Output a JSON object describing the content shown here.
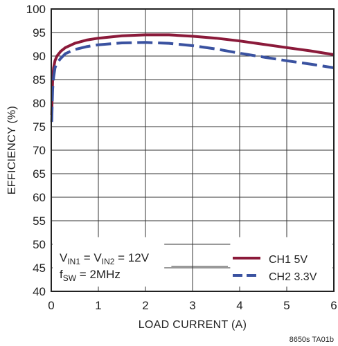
{
  "chart_data": {
    "type": "line",
    "title": "",
    "xlabel": "LOAD CURRENT (A)",
    "ylabel": "EFFICIENCY (%)",
    "xlim": [
      0,
      6
    ],
    "ylim": [
      40,
      100
    ],
    "xticks": [
      0,
      1,
      2,
      3,
      4,
      5,
      6
    ],
    "yticks": [
      40,
      45,
      50,
      55,
      60,
      65,
      70,
      75,
      80,
      85,
      90,
      95,
      100
    ],
    "grid": true,
    "legend_position": "bottom-right",
    "series": [
      {
        "name": "CH1 5V",
        "color": "#8b1a3a",
        "style": "solid",
        "x": [
          0.01,
          0.02,
          0.03,
          0.05,
          0.08,
          0.12,
          0.2,
          0.3,
          0.5,
          0.75,
          1.0,
          1.5,
          2.0,
          2.5,
          3.0,
          3.5,
          4.0,
          4.5,
          5.0,
          5.5,
          6.0
        ],
        "y": [
          77.5,
          82.0,
          85.0,
          87.5,
          89.0,
          90.0,
          91.0,
          91.8,
          92.7,
          93.4,
          93.8,
          94.3,
          94.5,
          94.5,
          94.2,
          93.8,
          93.2,
          92.5,
          91.8,
          91.1,
          90.3
        ]
      },
      {
        "name": "CH2 3.3V",
        "color": "#3a52a0",
        "style": "dashed",
        "x": [
          0.01,
          0.02,
          0.03,
          0.05,
          0.08,
          0.12,
          0.2,
          0.3,
          0.5,
          0.75,
          1.0,
          1.5,
          2.0,
          2.5,
          3.0,
          3.5,
          4.0,
          4.5,
          5.0,
          5.5,
          6.0
        ],
        "y": [
          76.0,
          80.0,
          83.0,
          85.5,
          87.5,
          88.5,
          89.5,
          90.5,
          91.4,
          92.0,
          92.4,
          92.8,
          92.9,
          92.7,
          92.2,
          91.5,
          90.6,
          89.8,
          89.0,
          88.3,
          87.5
        ]
      }
    ],
    "annotations": {
      "line1": {
        "v": "V",
        "sub1": "IN1",
        "eq": " = V",
        "sub2": "IN2",
        "rest": " = 12V"
      },
      "line2": {
        "f": "f",
        "sub": "SW",
        "rest": " = 2MHz"
      }
    },
    "figure_id": "8650s TA01b"
  }
}
